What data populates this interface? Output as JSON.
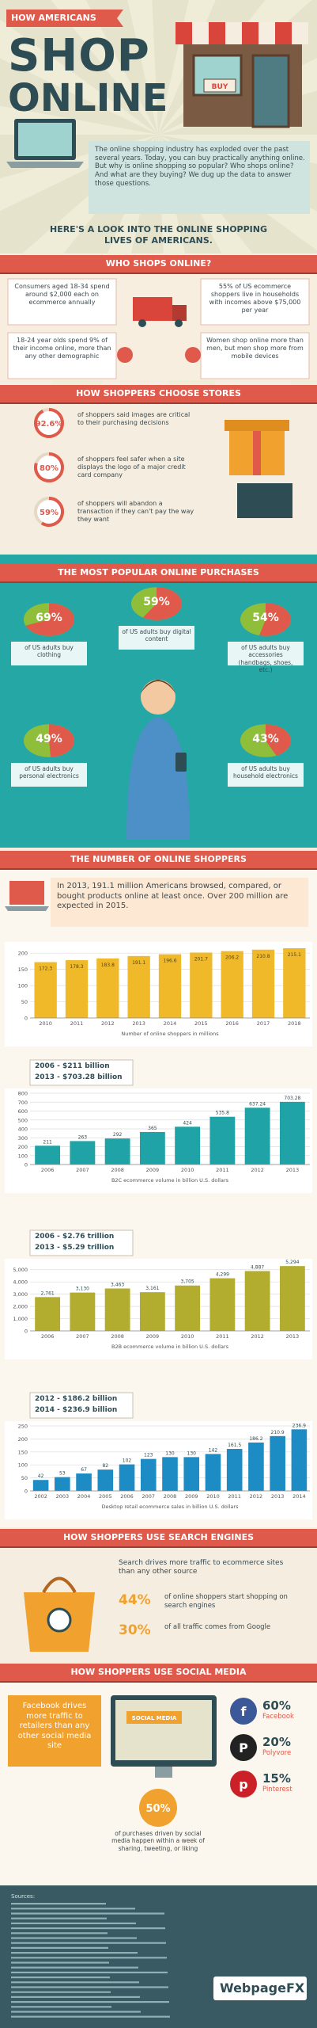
{
  "header": {
    "kicker": "HOW AMERICANS",
    "title_line1": "SHOP",
    "title_line2": "ONLINE",
    "sign": "BUY"
  },
  "intro": "The online shopping industry has exploded over the past several years. Today, you can buy practically anything online. But why is online shopping so popular? Who shops online? And what are they buying? We dug up the data to answer those questions.",
  "lead": "HERE'S A LOOK INTO THE ONLINE SHOPPING LIVES OF AMERICANS.",
  "who": {
    "title": "WHO SHOPS ONLINE?",
    "facts": [
      "Consumers aged 18-34 spend around $2,000 each on ecommerce annually",
      "55% of US ecommerce shoppers live in households with incomes above $75,000 per year",
      "18-24 year olds spend 9% of their income online, more than any other demographic",
      "Women shop online more than men, but men shop more from mobile devices"
    ]
  },
  "choose": {
    "title": "HOW SHOPPERS CHOOSE STORES",
    "stats": [
      {
        "value": 92.6,
        "label": "92.6%",
        "text": "of shoppers said images are critical to their purchasing decisions"
      },
      {
        "value": 80,
        "label": "80%",
        "text": "of shoppers feel safer when a site displays the logo of a major credit card company"
      },
      {
        "value": 59,
        "label": "59%",
        "text": "of shoppers will abandon a transaction if they can't pay the way they want"
      }
    ]
  },
  "purchases": {
    "title": "THE MOST POPULAR ONLINE PURCHASES",
    "stats": [
      {
        "value": 69,
        "label": "69%",
        "text": "of US adults buy clothing"
      },
      {
        "value": 59,
        "label": "59%",
        "text": "of US adults buy digital content"
      },
      {
        "value": 54,
        "label": "54%",
        "text": "of US adults buy accessories (handbags, shoes, etc.)"
      },
      {
        "value": 49,
        "label": "49%",
        "text": "of US adults buy personal electronics"
      },
      {
        "value": 43,
        "label": "43%",
        "text": "of US adults buy household electronics"
      }
    ]
  },
  "shoppers": {
    "title": "THE NUMBER OF ONLINE SHOPPERS",
    "intro": "In 2013, 191.1 million Americans browsed, compared, or bought products online at least once. Over 200 million are expected in 2015."
  },
  "chart_data": [
    {
      "type": "bar",
      "x_label": "Number of online shoppers in millions",
      "color": "#f0b92a",
      "categories": [
        "2010",
        "2011",
        "2012",
        "2013",
        "2014",
        "2015",
        "2016",
        "2017",
        "2018"
      ],
      "values": [
        172.3,
        178.3,
        183.8,
        191.1,
        196.6,
        201.7,
        206.2,
        210.8,
        215.1
      ],
      "ylim": [
        0,
        220
      ],
      "yticks": [
        0,
        50,
        100,
        150,
        200
      ],
      "grid": true
    },
    {
      "type": "bar",
      "x_label": "B2C ecommerce volume in billion U.S. dollars",
      "color": "#1fa3a6",
      "annotations": [
        "2006 - $211 billion",
        "2013 - $703.28 billion"
      ],
      "categories": [
        "2006",
        "2007",
        "2008",
        "2009",
        "2010",
        "2011",
        "2012",
        "2013"
      ],
      "values": [
        211,
        263,
        292,
        365,
        424,
        535.8,
        637.24,
        703.28
      ],
      "ylim": [
        0,
        800
      ],
      "yticks": [
        0,
        100,
        200,
        300,
        400,
        500,
        600,
        700,
        800
      ],
      "grid": true
    },
    {
      "type": "bar",
      "x_label": "B2B ecommerce volume in billion U.S. dollars",
      "color": "#b3ad2f",
      "annotations": [
        "2006 - $2.76 trillion",
        "2013 - $5.29 trillion"
      ],
      "categories": [
        "2006",
        "2007",
        "2008",
        "2009",
        "2010",
        "2011",
        "2012",
        "2013"
      ],
      "values": [
        2761,
        3130,
        3463,
        3161,
        3705,
        4299,
        4887,
        5294
      ],
      "value_labels": [
        "2,761",
        "3,130",
        "3,463",
        "3,161",
        "3,705",
        "4,299",
        "4,887",
        "5,294"
      ],
      "ylim": [
        0,
        5500
      ],
      "yticks": [
        0,
        {
          "value": 1000,
          "label": "1,000"
        },
        {
          "value": 2000,
          "label": "2,000"
        },
        {
          "value": 3000,
          "label": "3,000"
        },
        {
          "value": 4000,
          "label": "4,000"
        },
        {
          "value": 5000,
          "label": "5,000"
        }
      ],
      "grid": true
    },
    {
      "type": "bar",
      "x_label": "Desktop retail ecommerce sales in billion U.S. dollars",
      "color": "#1d8cc4",
      "annotations": [
        "2012 - $186.2 billion",
        "2014 - $236.9 billion"
      ],
      "categories": [
        "2002",
        "2003",
        "2004",
        "2005",
        "2006",
        "2007",
        "2008",
        "2009",
        "2010",
        "2011",
        "2012",
        "2013",
        "2014"
      ],
      "values": [
        42,
        53,
        67,
        82,
        102,
        123,
        130,
        130,
        142,
        161.5,
        186.2,
        210.9,
        236.9
      ],
      "ylim": [
        0,
        250
      ],
      "yticks": [
        0,
        50,
        100,
        150,
        200,
        250
      ],
      "grid": true
    }
  ],
  "search": {
    "title": "HOW SHOPPERS USE SEARCH ENGINES",
    "lead": "Search drives more traffic to ecommerce sites than any other source",
    "stats": [
      {
        "label": "44%",
        "text": "of online shoppers start shopping on search engines"
      },
      {
        "label": "30%",
        "text": "of all traffic comes from Google"
      }
    ]
  },
  "social": {
    "title": "HOW SHOPPERS USE SOCIAL MEDIA",
    "callout": "Facebook drives more traffic to retailers than any other social media site",
    "screen": "SOCIAL MEDIA",
    "sites": [
      {
        "icon": "f",
        "share": "60%",
        "name": "Facebook"
      },
      {
        "icon": "P",
        "share": "20%",
        "name": "Polyvore"
      },
      {
        "icon": "p",
        "share": "15%",
        "name": "Pinterest"
      }
    ],
    "stat": {
      "label": "50%",
      "text": "of purchases driven by social media happen within a week of sharing, tweeting, or liking"
    }
  },
  "footer": {
    "sources": "Sources:",
    "brand": "WebpageFX"
  }
}
